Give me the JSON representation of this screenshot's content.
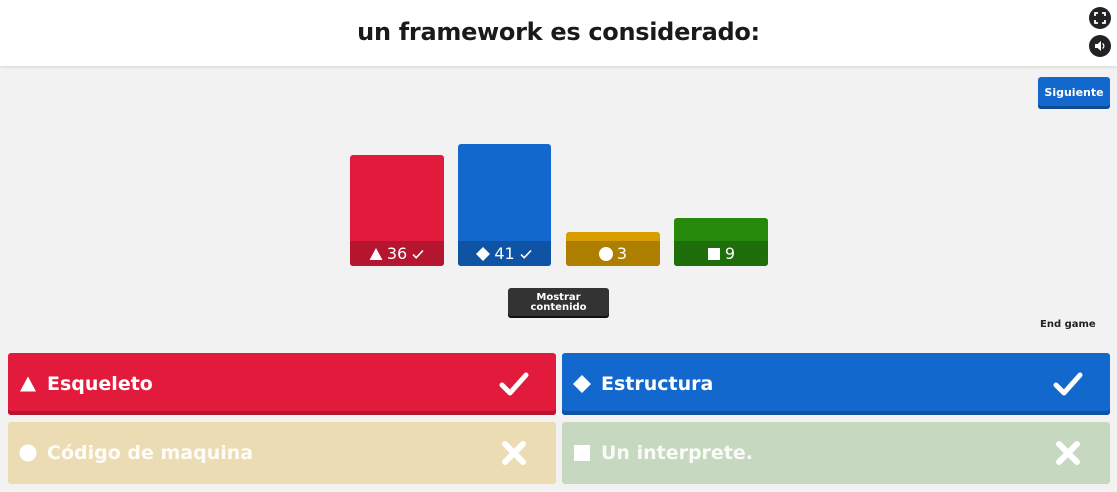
{
  "header": {
    "question": "un framework es considerado:",
    "fullscreen_icon": "fullscreen-icon",
    "sound_icon": "sound-icon"
  },
  "controls": {
    "next_label": "Siguiente",
    "show_content_label": "Mostrar contenido",
    "end_game_label": "End game"
  },
  "chart_data": {
    "type": "bar",
    "categories": [
      "triangle",
      "diamond",
      "circle",
      "square"
    ],
    "values": [
      36,
      41,
      3,
      9
    ],
    "correct": [
      true,
      true,
      false,
      false
    ],
    "colors": [
      "#e21b3c",
      "#1368ce",
      "#d89e00",
      "#26890c"
    ],
    "title": "",
    "xlabel": "",
    "ylabel": ""
  },
  "results": [
    {
      "shape": "triangle-icon",
      "count": "36",
      "correct": true
    },
    {
      "shape": "diamond-icon",
      "count": "41",
      "correct": true
    },
    {
      "shape": "circle-icon",
      "count": "3",
      "correct": false
    },
    {
      "shape": "square-icon",
      "count": "9",
      "correct": false
    }
  ],
  "answers": [
    {
      "shape": "triangle-icon",
      "text": "Esqueleto",
      "correct": true,
      "mark": "check-icon",
      "color": "#e21b3c"
    },
    {
      "shape": "diamond-icon",
      "text": "Estructura",
      "correct": true,
      "mark": "check-icon",
      "color": "#1368ce"
    },
    {
      "shape": "circle-icon",
      "text": "Código de maquina",
      "correct": false,
      "mark": "cross-icon",
      "color": "#d89e00"
    },
    {
      "shape": "square-icon",
      "text": "Un interprete.",
      "correct": false,
      "mark": "cross-icon",
      "color": "#26890c"
    }
  ]
}
